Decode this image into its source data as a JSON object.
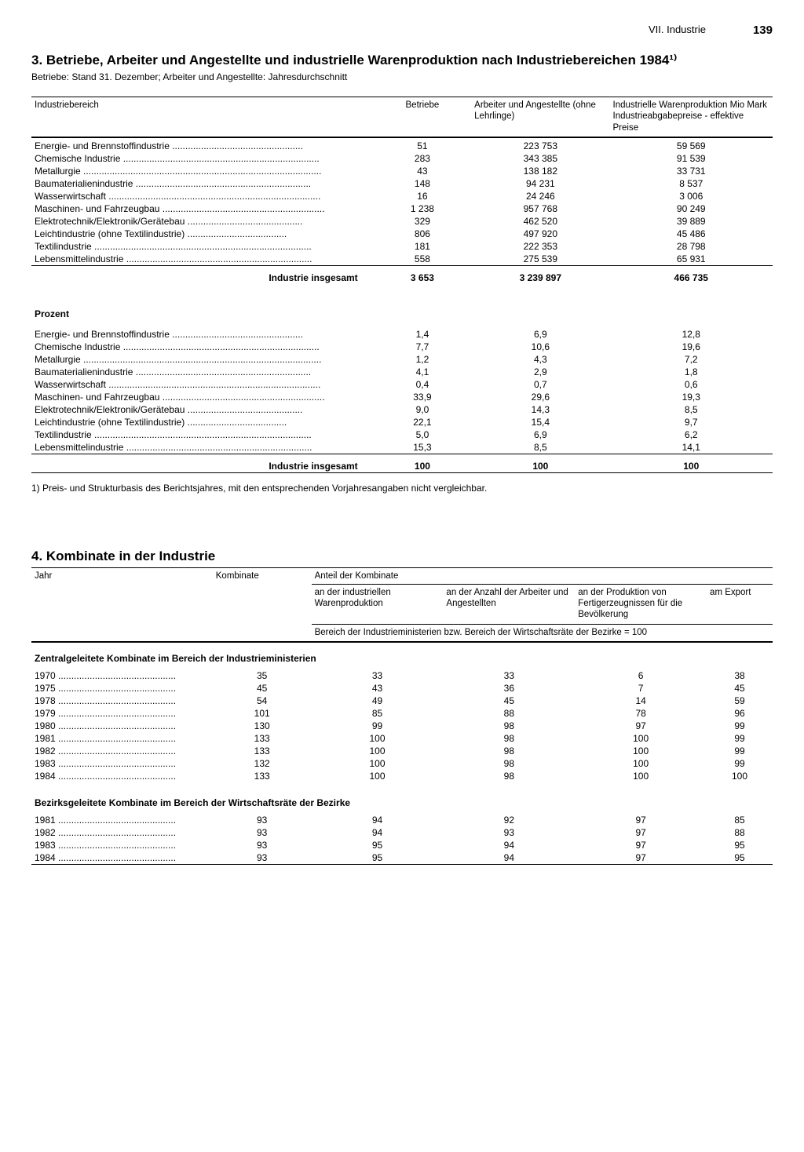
{
  "header": {
    "section": "VII. Industrie",
    "page": "139"
  },
  "sec3": {
    "title": "3. Betriebe, Arbeiter und Angestellte und industrielle Warenproduktion nach Industriebereichen 1984¹⁾",
    "subtitle": "Betriebe: Stand 31. Dezember; Arbeiter und Angestellte: Jahresdurchschnitt",
    "columns": {
      "c1": "Industriebereich",
      "c2": "Betriebe",
      "c3": "Arbeiter und Angestellte (ohne Lehrlinge)",
      "c4": "Industrielle Warenproduktion Mio Mark Industrieabgabepreise - effektive Preise"
    },
    "rows_abs": [
      {
        "label": "Energie- und Brennstoffindustrie",
        "b": "51",
        "a": "223 753",
        "p": "59 569"
      },
      {
        "label": "Chemische Industrie",
        "b": "283",
        "a": "343 385",
        "p": "91 539"
      },
      {
        "label": "Metallurgie",
        "b": "43",
        "a": "138 182",
        "p": "33 731"
      },
      {
        "label": "Baumaterialienindustrie",
        "b": "148",
        "a": "94 231",
        "p": "8 537"
      },
      {
        "label": "Wasserwirtschaft",
        "b": "16",
        "a": "24 246",
        "p": "3 006"
      },
      {
        "label": "Maschinen- und Fahrzeugbau",
        "b": "1 238",
        "a": "957 768",
        "p": "90 249"
      },
      {
        "label": "Elektrotechnik/Elektronik/Gerätebau",
        "b": "329",
        "a": "462 520",
        "p": "39 889"
      },
      {
        "label": "Leichtindustrie (ohne Textilindustrie)",
        "b": "806",
        "a": "497 920",
        "p": "45 486"
      },
      {
        "label": "Textilindustrie",
        "b": "181",
        "a": "222 353",
        "p": "28 798"
      },
      {
        "label": "Lebensmittelindustrie",
        "b": "558",
        "a": "275 539",
        "p": "65 931"
      }
    ],
    "total_abs": {
      "label": "Industrie insgesamt",
      "b": "3 653",
      "a": "3 239 897",
      "p": "466 735"
    },
    "prozent_label": "Prozent",
    "rows_pct": [
      {
        "label": "Energie- und Brennstoffindustrie",
        "b": "1,4",
        "a": "6,9",
        "p": "12,8"
      },
      {
        "label": "Chemische Industrie",
        "b": "7,7",
        "a": "10,6",
        "p": "19,6"
      },
      {
        "label": "Metallurgie",
        "b": "1,2",
        "a": "4,3",
        "p": "7,2"
      },
      {
        "label": "Baumaterialienindustrie",
        "b": "4,1",
        "a": "2,9",
        "p": "1,8"
      },
      {
        "label": "Wasserwirtschaft",
        "b": "0,4",
        "a": "0,7",
        "p": "0,6"
      },
      {
        "label": "Maschinen- und Fahrzeugbau",
        "b": "33,9",
        "a": "29,6",
        "p": "19,3"
      },
      {
        "label": "Elektrotechnik/Elektronik/Gerätebau",
        "b": "9,0",
        "a": "14,3",
        "p": "8,5"
      },
      {
        "label": "Leichtindustrie (ohne Textilindustrie)",
        "b": "22,1",
        "a": "15,4",
        "p": "9,7"
      },
      {
        "label": "Textilindustrie",
        "b": "5,0",
        "a": "6,9",
        "p": "6,2"
      },
      {
        "label": "Lebensmittelindustrie",
        "b": "15,3",
        "a": "8,5",
        "p": "14,1"
      }
    ],
    "total_pct": {
      "label": "Industrie insgesamt",
      "b": "100",
      "a": "100",
      "p": "100"
    },
    "footnote": "1) Preis- und Strukturbasis des Berichtsjahres, mit den entsprechenden Vorjahresangaben nicht vergleichbar."
  },
  "sec4": {
    "title": "4. Kombinate in der Industrie",
    "columns": {
      "jahr": "Jahr",
      "komb": "Kombinate",
      "share_hdr": "Anteil der Kombinate",
      "s1": "an der industriellen Warenproduktion",
      "s2": "an der Anzahl der Arbeiter und Angestellten",
      "s3": "an der Produktion von Fertigerzeugnissen für die Bevölkerung",
      "s4": "am Export",
      "basis": "Bereich der Industrieministerien bzw. Bereich der Wirtschaftsräte der Bezirke = 100"
    },
    "group_a": {
      "title": "Zentralgeleitete Kombinate im Bereich der Industrieministerien",
      "rows": [
        {
          "jahr": "1970",
          "k": "35",
          "s1": "33",
          "s2": "33",
          "s3": "6",
          "s4": "38"
        },
        {
          "jahr": "1975",
          "k": "45",
          "s1": "43",
          "s2": "36",
          "s3": "7",
          "s4": "45"
        },
        {
          "jahr": "1978",
          "k": "54",
          "s1": "49",
          "s2": "45",
          "s3": "14",
          "s4": "59"
        },
        {
          "jahr": "1979",
          "k": "101",
          "s1": "85",
          "s2": "88",
          "s3": "78",
          "s4": "96"
        },
        {
          "jahr": "1980",
          "k": "130",
          "s1": "99",
          "s2": "98",
          "s3": "97",
          "s4": "99"
        },
        {
          "jahr": "1981",
          "k": "133",
          "s1": "100",
          "s2": "98",
          "s3": "100",
          "s4": "99"
        },
        {
          "jahr": "1982",
          "k": "133",
          "s1": "100",
          "s2": "98",
          "s3": "100",
          "s4": "99"
        },
        {
          "jahr": "1983",
          "k": "132",
          "s1": "100",
          "s2": "98",
          "s3": "100",
          "s4": "99"
        },
        {
          "jahr": "1984",
          "k": "133",
          "s1": "100",
          "s2": "98",
          "s3": "100",
          "s4": "100"
        }
      ]
    },
    "group_b": {
      "title": "Bezirksgeleitete Kombinate im Bereich der Wirtschaftsräte der Bezirke",
      "rows": [
        {
          "jahr": "1981",
          "k": "93",
          "s1": "94",
          "s2": "92",
          "s3": "97",
          "s4": "85"
        },
        {
          "jahr": "1982",
          "k": "93",
          "s1": "94",
          "s2": "93",
          "s3": "97",
          "s4": "88"
        },
        {
          "jahr": "1983",
          "k": "93",
          "s1": "95",
          "s2": "94",
          "s3": "97",
          "s4": "95"
        },
        {
          "jahr": "1984",
          "k": "93",
          "s1": "95",
          "s2": "94",
          "s3": "97",
          "s4": "95"
        }
      ]
    }
  },
  "style": {
    "dot_fill_width_t1": 360,
    "dot_fill_width_t2": 170
  }
}
